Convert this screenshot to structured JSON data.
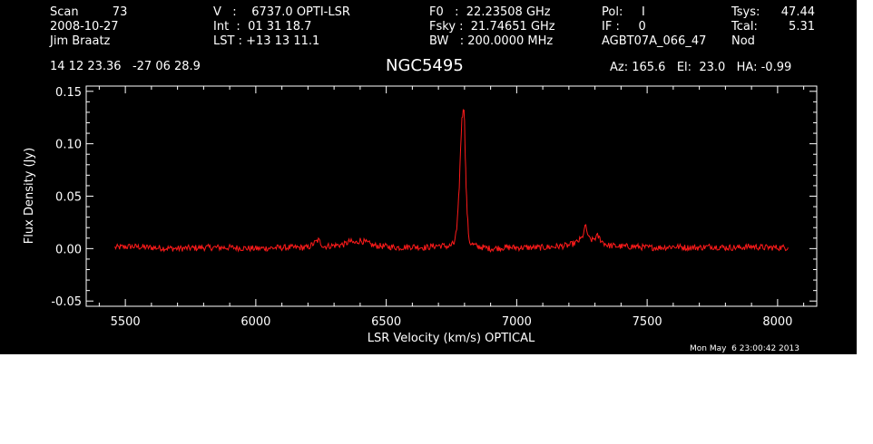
{
  "header": {
    "col1": {
      "scan": "Scan         73",
      "date": "2008-10-27",
      "observer": "Jim Braatz"
    },
    "col2": {
      "v": "V   :    6737.0 OPTI-LSR",
      "int": "Int  :  01 31 18.7",
      "lst": "LST : +13 13 11.1"
    },
    "col3": {
      "f0": "F0   :  22.23508 GHz",
      "fsky": "Fsky :  21.74651 GHz",
      "bw": "BW   : 200.0000 MHz"
    },
    "col4": {
      "pol": "Pol:     I",
      "if": "IF :     0",
      "project": "AGBT07A_066_47"
    },
    "col5": {
      "tsys_label": "Tsys:",
      "tsys_value": "47.44",
      "tcal_label": "Tcal:",
      "tcal_value": "5.31",
      "mode": "Nod"
    },
    "coords": "14 12 23.36   -27 06 28.9",
    "source": "NGC5495",
    "az_el_ha": "Az: 165.6   El:  23.0   HA: -0.99"
  },
  "timestamp": "Mon May  6 23:00:42 2013",
  "chart_data": {
    "type": "line",
    "title": "NGC5495",
    "xlabel": "LSR Velocity (km/s) OPTICAL",
    "ylabel": "Flux Density (Jy)",
    "xlim": [
      5350,
      8150
    ],
    "ylim": [
      -0.055,
      0.155
    ],
    "x_ticks": [
      5500,
      6000,
      6500,
      7000,
      7500,
      8000
    ],
    "y_ticks": [
      -0.05,
      0.0,
      0.05,
      0.1,
      0.15
    ],
    "y_tick_labels": [
      "-0.05",
      "0.00",
      "0.05",
      "0.10",
      "0.15"
    ],
    "line_color": "#ff1a1a",
    "series": [
      {
        "x": [
          5460,
          5520,
          5600,
          5700,
          5800,
          5900,
          6000,
          6100,
          6200,
          6240,
          6260,
          6300,
          6340,
          6360,
          6380,
          6400,
          6450,
          6500,
          6550,
          6600,
          6650,
          6700,
          6740,
          6760,
          6770,
          6775,
          6780,
          6785,
          6790,
          6795,
          6798,
          6800,
          6803,
          6806,
          6810,
          6815,
          6820,
          6830,
          6850,
          6900,
          6950,
          7000,
          7050,
          7100,
          7150,
          7200,
          7230,
          7250,
          7265,
          7275,
          7290,
          7310,
          7330,
          7350,
          7400,
          7450,
          7500,
          7550,
          7600,
          7650,
          7700,
          7750,
          7800,
          7850,
          7900,
          7950,
          8000,
          8040
        ],
        "y": [
          0.001,
          0.002,
          0.001,
          0.0,
          0.001,
          0.001,
          0.0,
          0.001,
          0.001,
          0.008,
          0.002,
          0.003,
          0.004,
          0.007,
          0.005,
          0.008,
          0.003,
          0.002,
          0.001,
          0.002,
          0.001,
          0.003,
          0.002,
          0.005,
          0.018,
          0.035,
          0.06,
          0.095,
          0.125,
          0.13,
          0.135,
          0.12,
          0.09,
          0.06,
          0.035,
          0.015,
          0.006,
          0.004,
          0.002,
          0.0,
          0.001,
          0.001,
          0.001,
          0.001,
          0.002,
          0.003,
          0.006,
          0.01,
          0.022,
          0.01,
          0.008,
          0.012,
          0.006,
          0.003,
          0.002,
          0.002,
          0.001,
          0.001,
          0.002,
          0.001,
          0.001,
          0.002,
          0.001,
          0.001,
          0.002,
          0.001,
          0.001,
          0.001
        ]
      }
    ]
  }
}
